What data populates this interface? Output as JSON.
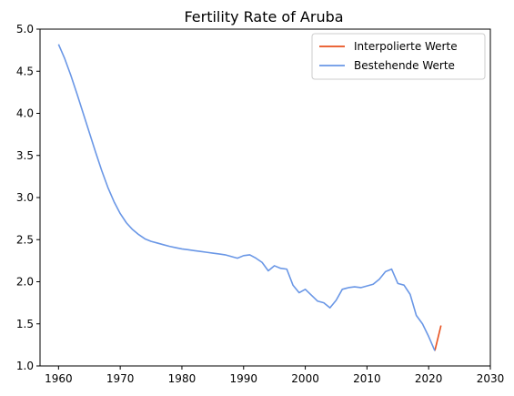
{
  "chart_data": {
    "type": "line",
    "title": "Fertility Rate of Aruba",
    "xlabel": "",
    "ylabel": "",
    "xlim": [
      1957,
      2030
    ],
    "ylim": [
      1.0,
      5.0
    ],
    "xticks": [
      1960,
      1970,
      1980,
      1990,
      2000,
      2010,
      2020,
      2030
    ],
    "yticks": [
      "1.0",
      "1.5",
      "2.0",
      "2.5",
      "3.0",
      "3.5",
      "4.0",
      "4.5",
      "5.0"
    ],
    "legend_position": "top-right",
    "colors": {
      "interpolated": "#e8501e",
      "existing": "#6a97e6"
    },
    "series": [
      {
        "name": "Interpolierte Werte",
        "x": [
          2021,
          2022
        ],
        "y": [
          1.18,
          1.48
        ]
      },
      {
        "name": "Bestehende Werte",
        "x": [
          1960,
          1961,
          1962,
          1963,
          1964,
          1965,
          1966,
          1967,
          1968,
          1969,
          1970,
          1971,
          1972,
          1973,
          1974,
          1975,
          1976,
          1977,
          1978,
          1979,
          1980,
          1981,
          1982,
          1983,
          1984,
          1985,
          1986,
          1987,
          1988,
          1989,
          1990,
          1991,
          1992,
          1993,
          1994,
          1995,
          1996,
          1997,
          1998,
          1999,
          2000,
          2001,
          2002,
          2003,
          2004,
          2005,
          2006,
          2007,
          2008,
          2009,
          2010,
          2011,
          2012,
          2013,
          2014,
          2015,
          2016,
          2017,
          2018,
          2019,
          2020,
          2021
        ],
        "y": [
          4.82,
          4.65,
          4.45,
          4.23,
          4.0,
          3.77,
          3.54,
          3.32,
          3.12,
          2.95,
          2.81,
          2.7,
          2.62,
          2.56,
          2.51,
          2.48,
          2.46,
          2.44,
          2.42,
          2.405,
          2.39,
          2.38,
          2.37,
          2.36,
          2.35,
          2.34,
          2.33,
          2.32,
          2.3,
          2.28,
          2.31,
          2.32,
          2.28,
          2.23,
          2.13,
          2.19,
          2.16,
          2.15,
          1.96,
          1.87,
          1.91,
          1.84,
          1.77,
          1.75,
          1.69,
          1.78,
          1.91,
          1.93,
          1.94,
          1.93,
          1.95,
          1.97,
          2.03,
          2.12,
          2.15,
          1.98,
          1.96,
          1.85,
          1.6,
          1.5,
          1.35,
          1.18
        ]
      }
    ]
  }
}
